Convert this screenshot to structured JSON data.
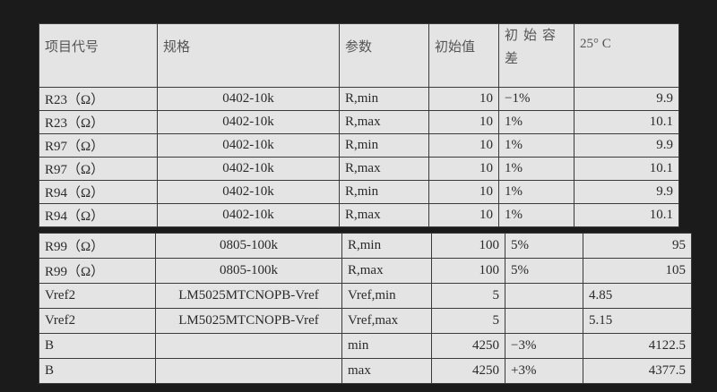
{
  "table1": {
    "headers": [
      "项目代号",
      "规格",
      "参数",
      "初始值",
      "初始容差",
      "25° C"
    ],
    "rows": [
      [
        "R23（Ω）",
        "0402-10k",
        "R,min",
        "10",
        "−1%",
        "9.9"
      ],
      [
        "R23（Ω）",
        "0402-10k",
        "R,max",
        "10",
        "1%",
        "10.1"
      ],
      [
        "R97（Ω）",
        "0402-10k",
        "R,min",
        "10",
        "1%",
        "9.9"
      ],
      [
        "R97（Ω）",
        "0402-10k",
        "R,max",
        "10",
        "1%",
        "10.1"
      ],
      [
        "R94（Ω）",
        "0402-10k",
        "R,min",
        "10",
        "1%",
        "9.9"
      ],
      [
        "R94（Ω）",
        "0402-10k",
        "R,max",
        "10",
        "1%",
        "10.1"
      ]
    ]
  },
  "table2": {
    "rows": [
      [
        "R99（Ω）",
        "0805-100k",
        "R,min",
        "100",
        "5%",
        "95"
      ],
      [
        "R99（Ω）",
        "0805-100k",
        "R,max",
        "100",
        "5%",
        "105"
      ],
      [
        "Vref2",
        "LM5025MTCNOPB-Vref",
        "Vref,min",
        "5",
        "",
        "4.85"
      ],
      [
        "Vref2",
        "LM5025MTCNOPB-Vref",
        "Vref,max",
        "5",
        "",
        "5.15"
      ],
      [
        "B",
        "",
        "min",
        "4250",
        "−3%",
        "4122.5"
      ],
      [
        "B",
        "",
        "max",
        "4250",
        "+3%",
        "4377.5"
      ]
    ]
  }
}
